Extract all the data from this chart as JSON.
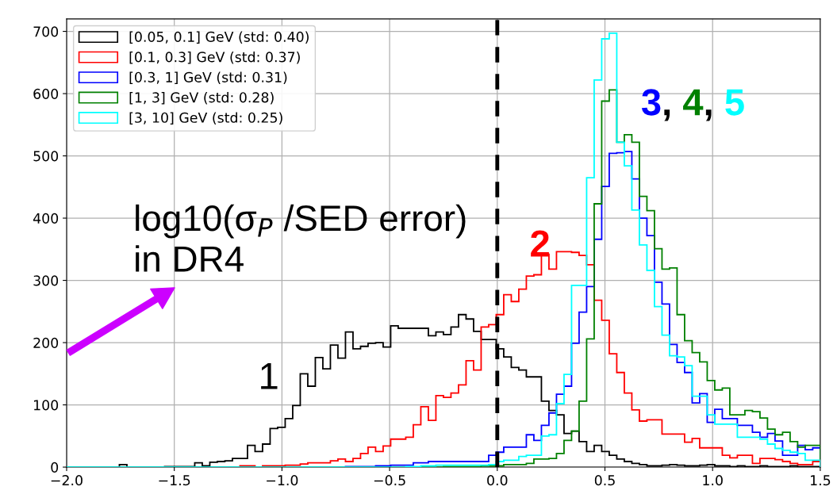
{
  "chart_data": {
    "type": "histogram",
    "bins": [
      -2,
      -1.965,
      -1.93,
      -1.895,
      -1.86,
      -1.825,
      -1.79,
      -1.755,
      -1.72,
      -1.685,
      -1.65,
      -1.615,
      -1.58,
      -1.545,
      -1.51,
      -1.475,
      -1.44,
      -1.405,
      -1.37,
      -1.335,
      -1.3,
      -1.265,
      -1.23,
      -1.195,
      -1.16,
      -1.125,
      -1.09,
      -1.055,
      -1.02,
      -0.985,
      -0.95,
      -0.915,
      -0.88,
      -0.845,
      -0.81,
      -0.775,
      -0.74,
      -0.705,
      -0.67,
      -0.635,
      -0.6,
      -0.565,
      -0.53,
      -0.495,
      -0.46,
      -0.425,
      -0.39,
      -0.355,
      -0.32,
      -0.285,
      -0.25,
      -0.215,
      -0.18,
      -0.145,
      -0.11,
      -0.075,
      -0.04,
      -0.005,
      0.03,
      0.065,
      0.1,
      0.135,
      0.17,
      0.205,
      0.24,
      0.275,
      0.31,
      0.345,
      0.38,
      0.415,
      0.45,
      0.485,
      0.52,
      0.555,
      0.59,
      0.625,
      0.66,
      0.695,
      0.73,
      0.765,
      0.8,
      0.835,
      0.87,
      0.905,
      0.94,
      0.975,
      1.01,
      1.045,
      1.08,
      1.115,
      1.15,
      1.185,
      1.22,
      1.255,
      1.29,
      1.325,
      1.36,
      1.395,
      1.43,
      1.465,
      1.5
    ],
    "series": [
      {
        "name": "[0.05, 0.1] GeV (std: 0.40)",
        "color": "#000000",
        "values": [
          0,
          0,
          0,
          0,
          0,
          0,
          0,
          4,
          0,
          0,
          0,
          0,
          0,
          1,
          1,
          1,
          1,
          7,
          2,
          8,
          9,
          10,
          14,
          14,
          35,
          25,
          37,
          62,
          64,
          78,
          99,
          150,
          130,
          176,
          158,
          196,
          175,
          217,
          190,
          194,
          199,
          200,
          193,
          227,
          223,
          223,
          223,
          223,
          211,
          217,
          213,
          225,
          245,
          238,
          218,
          205,
          205,
          190,
          177,
          160,
          156,
          145,
          145,
          106,
          91,
          84,
          54,
          58,
          41,
          25,
          35,
          25,
          19,
          13,
          9,
          6,
          4,
          2,
          2,
          3,
          4,
          3,
          2,
          2,
          3,
          4,
          2,
          2,
          1,
          2,
          1,
          1,
          2,
          1,
          1,
          1,
          2,
          1,
          1,
          1
        ]
      },
      {
        "name": "[0.1, 0.3] GeV (std: 0.37)",
        "color": "#ff0000",
        "values": [
          0,
          0,
          0,
          0,
          0,
          0,
          0,
          0,
          0,
          0,
          0,
          0,
          0,
          0,
          0,
          0,
          0,
          0,
          0,
          0,
          0,
          0,
          0,
          2,
          2,
          0,
          2,
          2,
          2,
          3,
          3,
          5,
          7,
          7,
          7,
          10,
          13,
          9,
          14,
          22,
          32,
          25,
          34,
          45,
          45,
          48,
          68,
          97,
          75,
          115,
          112,
          119,
          132,
          171,
          156,
          225,
          229,
          245,
          277,
          266,
          286,
          307,
          309,
          342,
          318,
          346,
          346,
          345,
          340,
          325,
          268,
          236,
          182,
          152,
          119,
          92,
          74,
          76,
          76,
          53,
          53,
          53,
          40,
          46,
          31,
          31,
          31,
          19,
          15,
          19,
          19,
          6,
          14,
          14,
          12,
          9,
          6,
          4,
          4,
          9
        ]
      },
      {
        "name": "[0.3, 1] GeV (std: 0.31)",
        "color": "#0000ff",
        "values": [
          0,
          0,
          0,
          0,
          0,
          0,
          0,
          0,
          0,
          0,
          0,
          0,
          0,
          0,
          0,
          0,
          0,
          0,
          0,
          0,
          0,
          0,
          0,
          0,
          0,
          0,
          0,
          0,
          0,
          0,
          0,
          0,
          0,
          0,
          0,
          0,
          0,
          1,
          1,
          1,
          1,
          2,
          2,
          3,
          3,
          3,
          7,
          7,
          9,
          9,
          9,
          9,
          9,
          9,
          9,
          9,
          19,
          24,
          32,
          32,
          32,
          52,
          43,
          67,
          87,
          117,
          130,
          199,
          249,
          290,
          366,
          451,
          504,
          505,
          507,
          463,
          400,
          372,
          297,
          262,
          197,
          168,
          152,
          103,
          118,
          72,
          93,
          78,
          78,
          67,
          67,
          56,
          48,
          54,
          42,
          19,
          19,
          35,
          28,
          31
        ]
      },
      {
        "name": "[1, 3] GeV (std: 0.28)",
        "color": "#008000",
        "values": [
          0,
          0,
          0,
          0,
          0,
          0,
          0,
          0,
          0,
          0,
          0,
          0,
          0,
          0,
          0,
          0,
          0,
          0,
          0,
          0,
          0,
          0,
          0,
          0,
          0,
          0,
          0,
          0,
          0,
          0,
          0,
          0,
          0,
          0,
          0,
          0,
          0,
          0,
          0,
          0,
          0,
          0,
          0,
          0,
          0,
          0,
          0,
          0,
          0,
          0,
          1,
          1,
          1,
          1,
          1,
          2,
          2,
          2,
          4,
          4,
          4,
          6,
          13,
          13,
          14,
          22,
          43,
          58,
          106,
          206,
          423,
          588,
          606,
          522,
          534,
          522,
          435,
          412,
          351,
          318,
          320,
          245,
          203,
          184,
          169,
          139,
          124,
          127,
          84,
          84,
          91,
          89,
          79,
          61,
          52,
          56,
          41,
          32,
          35,
          35
        ]
      },
      {
        "name": "[3, 10] GeV (std: 0.25)",
        "color": "#00ffff",
        "values": [
          0,
          0,
          0,
          0,
          0,
          0,
          0,
          0,
          0,
          0,
          0,
          0,
          0,
          0,
          0,
          0,
          0,
          0,
          0,
          0,
          0,
          0,
          0,
          0,
          0,
          0,
          0,
          0,
          0,
          0,
          0,
          0,
          0,
          0,
          0,
          0,
          0,
          0,
          0,
          0,
          0,
          0,
          0,
          0,
          0,
          1,
          1,
          2,
          2,
          3,
          3,
          3,
          3,
          3,
          3,
          3,
          4,
          9,
          11,
          11,
          17,
          19,
          19,
          50,
          52,
          102,
          149,
          292,
          292,
          465,
          622,
          688,
          697,
          522,
          484,
          413,
          357,
          316,
          258,
          212,
          179,
          177,
          163,
          114,
          114,
          84,
          69,
          69,
          69,
          48,
          48,
          48,
          45,
          37,
          30,
          27,
          24,
          22,
          11,
          11
        ]
      }
    ],
    "xlim": [
      -2,
      1.5
    ],
    "xticks": [
      {
        "value": -2,
        "label": "−2.0"
      },
      {
        "value": -1.5,
        "label": "−1.5"
      },
      {
        "value": -1,
        "label": "−1.0"
      },
      {
        "value": -0.5,
        "label": "−0.5"
      },
      {
        "value": 0,
        "label": "0.0"
      },
      {
        "value": 0.5,
        "label": "0.5"
      },
      {
        "value": 1,
        "label": "1.0"
      },
      {
        "value": 1.5,
        "label": "1.5"
      }
    ],
    "ylim": [
      0,
      720
    ],
    "yticks": [
      0,
      100,
      200,
      300,
      400,
      500,
      600,
      700
    ],
    "grid": true,
    "legend": "top left",
    "ref_lines": [
      {
        "axis": "x",
        "value": 0,
        "color": "#000000",
        "line_style": "dashed"
      }
    ],
    "annotations": [
      "log10(σ$_{P}$ /SED error)\nin DR4",
      "1",
      "2",
      "3, 4, 5"
    ]
  }
}
